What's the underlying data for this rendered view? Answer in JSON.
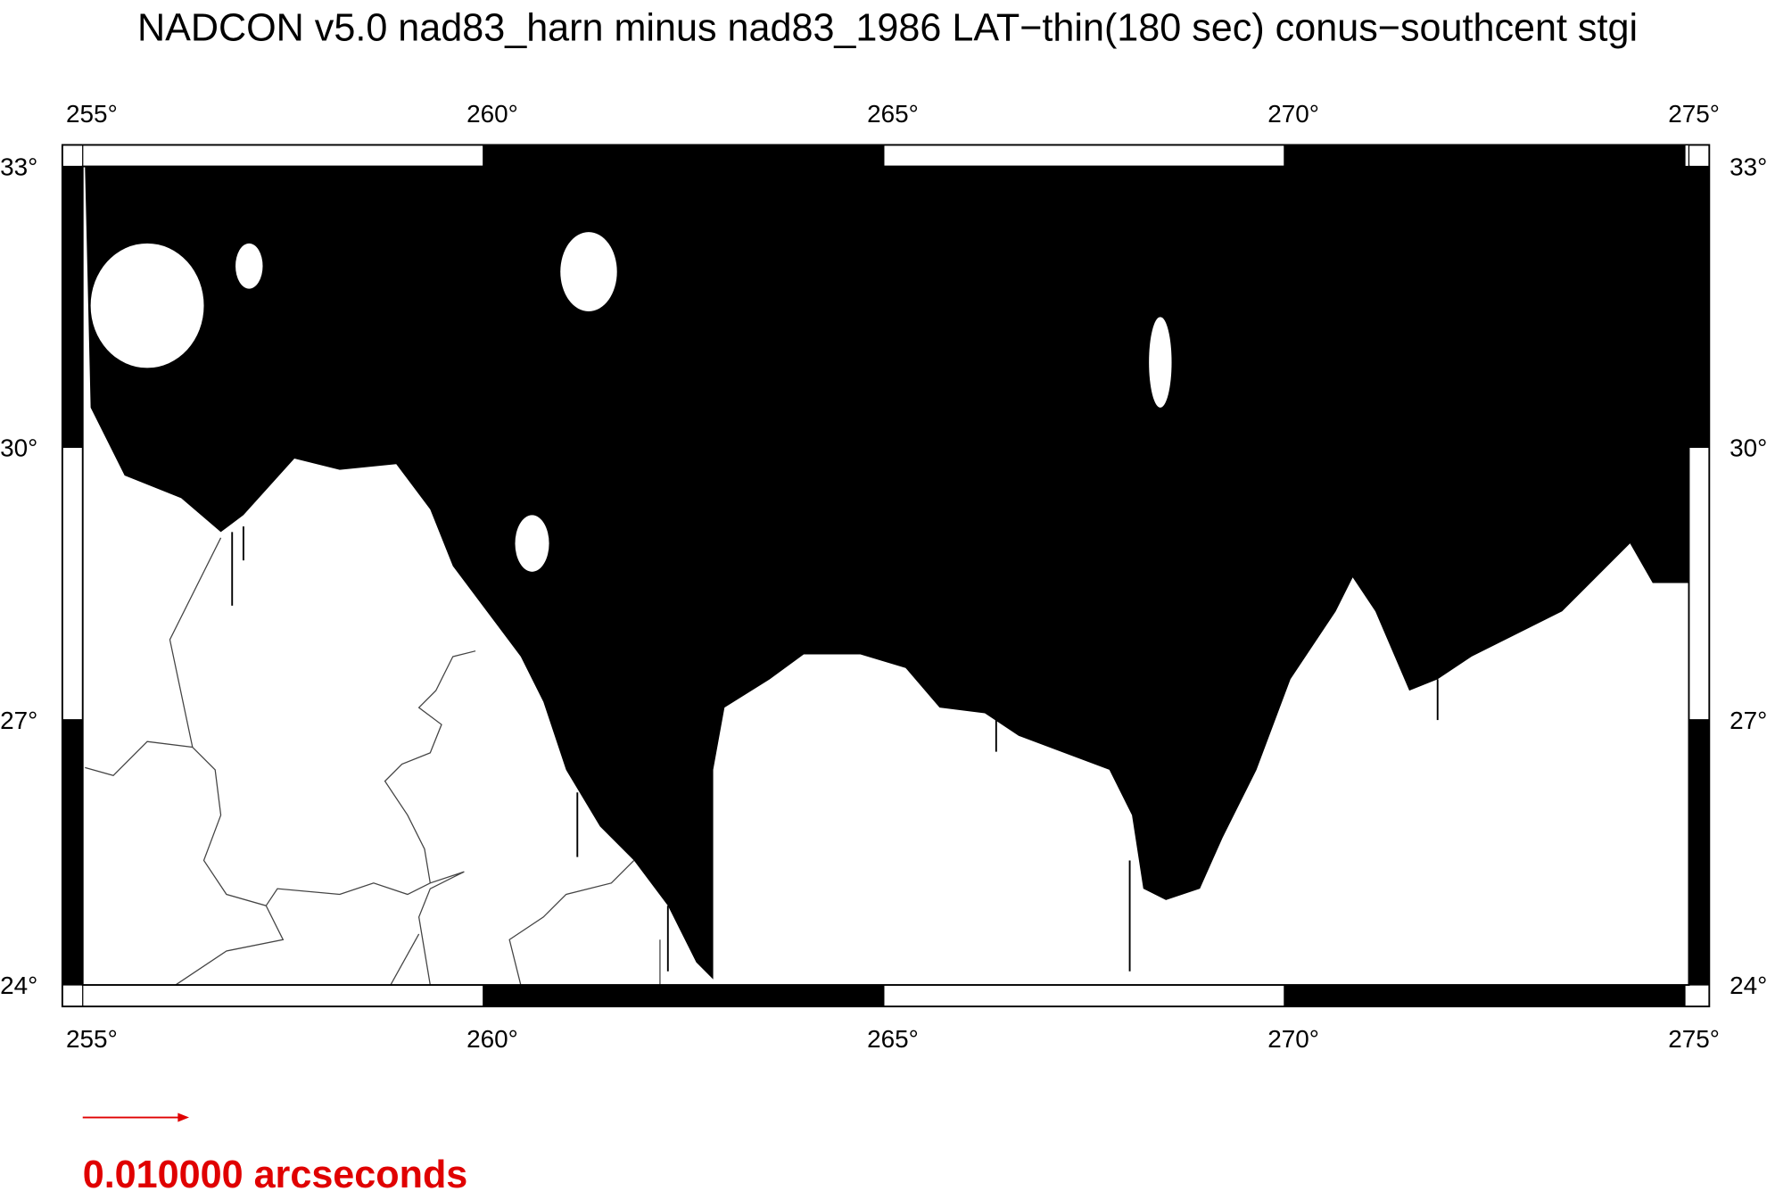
{
  "chart_data": {
    "type": "vector-map",
    "title": "NADCON v5.0 nad83_harn minus nad83_1986 LAT−thin(180 sec) conus−southcent stgi",
    "xlim": [
      255,
      275.05
    ],
    "ylim": [
      24,
      33
    ],
    "xticks": [
      {
        "value": 255,
        "label": "255°"
      },
      {
        "value": 260,
        "label": "260°"
      },
      {
        "value": 265,
        "label": "265°"
      },
      {
        "value": 270,
        "label": "270°"
      },
      {
        "value": 275,
        "label": "275°"
      }
    ],
    "yticks": [
      {
        "value": 24,
        "label": "24°"
      },
      {
        "value": 27,
        "label": "27°"
      },
      {
        "value": 30,
        "label": "30°"
      },
      {
        "value": 33,
        "label": "33°"
      }
    ],
    "legend": "0.010000 arcseconds",
    "legend_color": "#e00000"
  }
}
